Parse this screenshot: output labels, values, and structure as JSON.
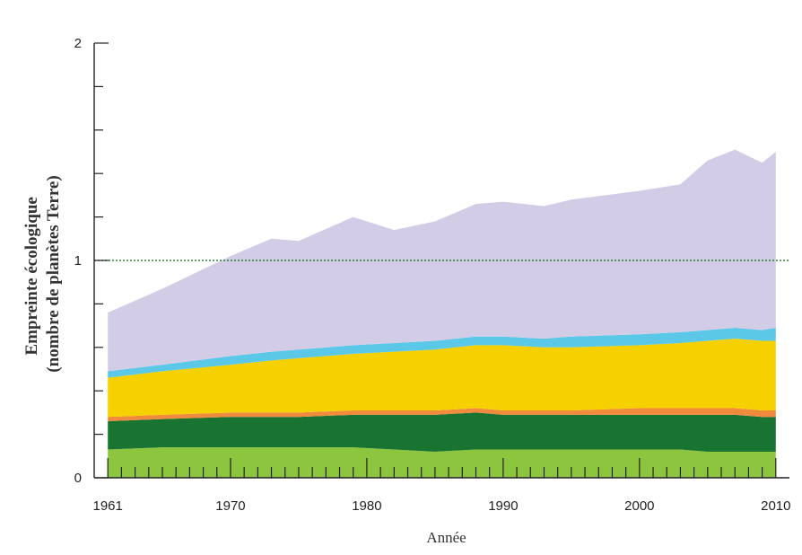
{
  "chart_data": {
    "type": "area",
    "stacked": true,
    "xlabel": "Année",
    "ylabel_lines": [
      "Empreinte écologique",
      "(nombre de planètes Terre)"
    ],
    "xlim": [
      1960,
      2011
    ],
    "ylim": [
      0,
      2
    ],
    "x_tick_labels": [
      {
        "x": 1961,
        "label": "1961"
      },
      {
        "x": 1970,
        "label": "1970"
      },
      {
        "x": 1980,
        "label": "1980"
      },
      {
        "x": 1990,
        "label": "1990"
      },
      {
        "x": 2000,
        "label": "2000"
      },
      {
        "x": 2010,
        "label": "2010"
      }
    ],
    "y_tick_labels": [
      {
        "y": 0,
        "label": "0"
      },
      {
        "y": 1,
        "label": "1"
      },
      {
        "y": 2,
        "label": "2"
      }
    ],
    "y_minor_ticks": [
      0.2,
      0.4,
      0.6,
      0.8,
      1.2,
      1.4,
      1.6,
      1.8
    ],
    "reference_line": {
      "y": 1,
      "color": "#2e7d32",
      "style": "dotted"
    },
    "x": [
      1961,
      1965,
      1970,
      1973,
      1975,
      1979,
      1982,
      1985,
      1988,
      1990,
      1993,
      1995,
      2000,
      2003,
      2005,
      2007,
      2009,
      2010
    ],
    "series": [
      {
        "key": "s1",
        "color": "#8cc63f",
        "values": [
          0.13,
          0.14,
          0.14,
          0.14,
          0.14,
          0.14,
          0.13,
          0.12,
          0.13,
          0.13,
          0.13,
          0.13,
          0.13,
          0.13,
          0.12,
          0.12,
          0.12,
          0.12
        ]
      },
      {
        "key": "s2",
        "color": "#1a7431",
        "values": [
          0.13,
          0.13,
          0.14,
          0.14,
          0.14,
          0.15,
          0.16,
          0.17,
          0.17,
          0.16,
          0.16,
          0.16,
          0.16,
          0.16,
          0.17,
          0.17,
          0.16,
          0.16
        ]
      },
      {
        "key": "s3",
        "color": "#f08a3c",
        "values": [
          0.02,
          0.02,
          0.02,
          0.02,
          0.02,
          0.02,
          0.02,
          0.02,
          0.02,
          0.02,
          0.02,
          0.02,
          0.03,
          0.03,
          0.03,
          0.03,
          0.03,
          0.03
        ]
      },
      {
        "key": "s4",
        "color": "#f7d000",
        "values": [
          0.18,
          0.2,
          0.22,
          0.24,
          0.25,
          0.26,
          0.27,
          0.28,
          0.29,
          0.3,
          0.29,
          0.29,
          0.29,
          0.3,
          0.31,
          0.32,
          0.32,
          0.32
        ]
      },
      {
        "key": "s5",
        "color": "#5bc8e8",
        "values": [
          0.03,
          0.03,
          0.04,
          0.04,
          0.04,
          0.04,
          0.04,
          0.04,
          0.04,
          0.04,
          0.04,
          0.05,
          0.05,
          0.05,
          0.05,
          0.05,
          0.05,
          0.06
        ]
      },
      {
        "key": "s6",
        "color": "#d3cce6",
        "values": [
          0.27,
          0.35,
          0.46,
          0.52,
          0.5,
          0.59,
          0.52,
          0.55,
          0.61,
          0.62,
          0.61,
          0.63,
          0.66,
          0.68,
          0.78,
          0.82,
          0.77,
          0.81
        ]
      }
    ]
  }
}
